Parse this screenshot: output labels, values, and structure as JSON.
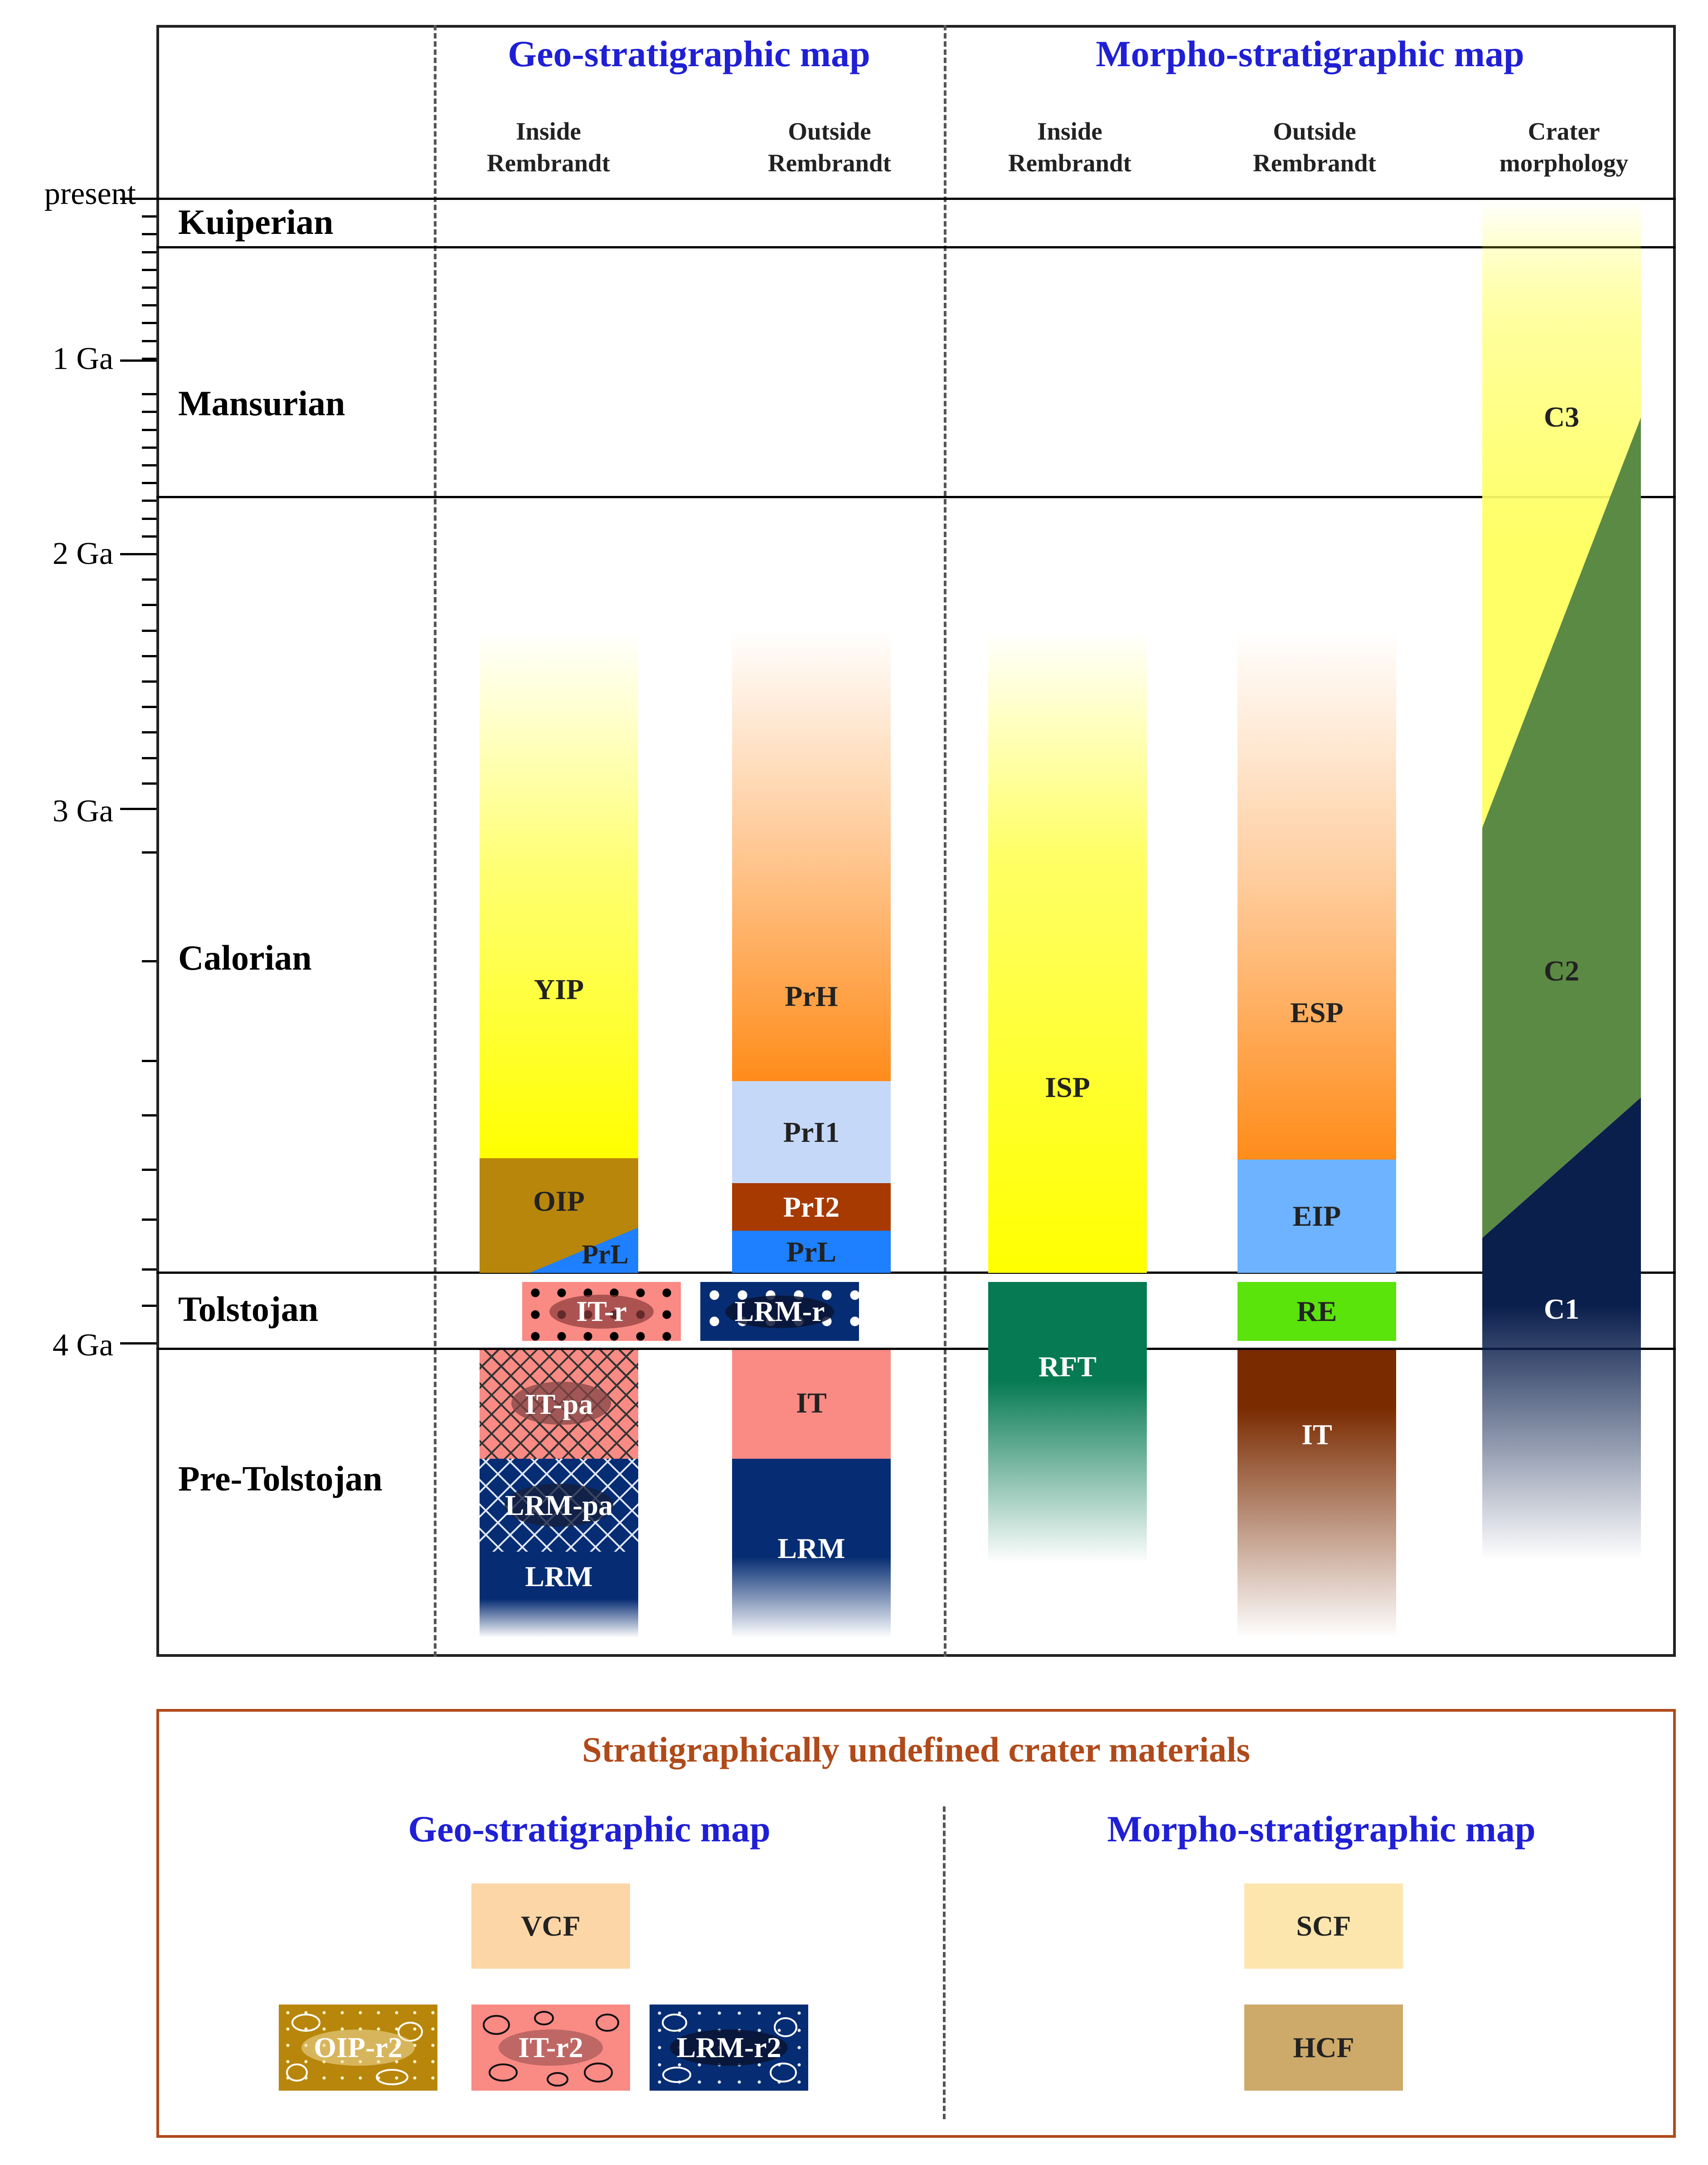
{
  "headers": {
    "geo_title": "Geo-stratigraphic map",
    "morpho_title": "Morpho-stratigraphic map",
    "inside_line1": "Inside",
    "inside_line2": "Rembrandt",
    "outside_line1": "Outside",
    "outside_line2": "Rembrandt",
    "crater_line1": "Crater",
    "crater_line2": "morphology"
  },
  "age_axis": {
    "present": "present",
    "one_ga": "1 Ga",
    "two_ga": "2 Ga",
    "three_ga": "3 Ga",
    "four_ga": "4 Ga"
  },
  "periods": {
    "kuiperian": "Kuiperian",
    "mansurian": "Mansurian",
    "calorian": "Calorian",
    "tolstojan": "Tolstojan",
    "pre_tolstojan": "Pre-Tolstojan"
  },
  "geo_inside": {
    "yip": "YIP",
    "oip": "OIP",
    "prl": "PrL",
    "it_r": "IT-r",
    "it_pa": "IT-pa",
    "lrm_pa": "LRM-pa",
    "lrm": "LRM"
  },
  "geo_outside": {
    "prh": "PrH",
    "pri1": "PrI1",
    "pri2": "PrI2",
    "prl": "PrL",
    "lrm_r": "LRM-r",
    "it": "IT",
    "lrm": "LRM"
  },
  "morpho_inside": {
    "isp": "ISP",
    "rft": "RFT"
  },
  "morpho_outside": {
    "esp": "ESP",
    "eip": "EIP",
    "re": "RE",
    "it": "IT"
  },
  "crater_morphology": {
    "c3": "C3",
    "c2": "C2",
    "c1": "C1"
  },
  "legend": {
    "title": "Stratigraphically undefined crater materials",
    "geo_title": "Geo-stratigraphic map",
    "morpho_title": "Morpho-stratigraphic map",
    "vcf": "VCF",
    "oip_r2": "OIP-r2",
    "it_r2": "IT-r2",
    "lrm_r2": "LRM-r2",
    "scf": "SCF",
    "hcf": "HCF"
  },
  "colors": {
    "yellow": "#ffff00",
    "orange": "#ff8c1a",
    "olive": "#b8860b",
    "blue_prl": "#1e7fff",
    "light_blue": "#c6d8f8",
    "rust": "#a63a00",
    "salmon": "#f98a84",
    "navy": "#062d73",
    "teal": "#067a52",
    "green": "#5be30c",
    "brown": "#7a2b00",
    "sky": "#6eb3ff",
    "moss": "#5b8a44",
    "dark_navy": "#0b1f4d",
    "legend_border": "#b04a1a",
    "legend_title": "#b04a1a",
    "vcf": "#fcd6a6",
    "scf": "#fde6ad",
    "hcf": "#cda96a",
    "title_blue": "#1f1fd6"
  }
}
